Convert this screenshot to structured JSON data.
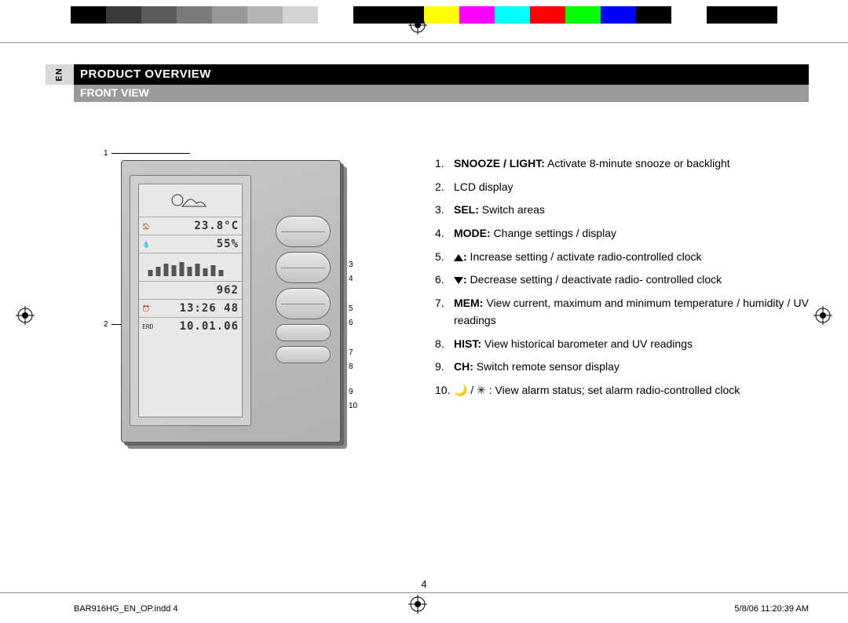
{
  "lang_tab": "EN",
  "section_title": "PRODUCT OVERVIEW",
  "subsection_title": "FRONT VIEW",
  "page_number": "4",
  "footer_left": "BAR916HG_EN_OP.indd   4",
  "footer_right": "5/8/06   11:20:39 AM",
  "colorbar": [
    "#000000",
    "#3a3a3a",
    "#5c5c5c",
    "#7a7a7a",
    "#989898",
    "#b4b4b4",
    "#d2d2d2",
    "#ffffff",
    "#000000",
    "#000000",
    "#ffff00",
    "#ff00ff",
    "#00ffff",
    "#ff0000",
    "#00ff00",
    "#0000ff",
    "#000000",
    "#ffffff",
    "#000000",
    "#000000"
  ],
  "diagram": {
    "callouts": [
      "1",
      "2",
      "3",
      "4",
      "5",
      "6",
      "7",
      "8",
      "9",
      "10"
    ],
    "lcd_lines": {
      "temp": "23.8°C",
      "hum": "55%",
      "pressure": "962",
      "time": "13:26 48",
      "date": "10.01.06"
    }
  },
  "list_items": [
    {
      "bold": "SNOOZE / LIGHT:",
      "text": " Activate 8-minute snooze or backlight"
    },
    {
      "bold": "",
      "text": "LCD display"
    },
    {
      "bold": "SEL:",
      "text": " Switch areas"
    },
    {
      "bold": "MODE:",
      "text": " Change settings / display"
    },
    {
      "bold": "",
      "icon": "up",
      "after_bold": ":",
      "text": " Increase setting / activate radio-controlled clock"
    },
    {
      "bold": "",
      "icon": "down",
      "after_bold": ":",
      "text": " Decrease setting / deactivate radio- controlled clock"
    },
    {
      "bold": "MEM:",
      "text": " View current, maximum and minimum temperature / humidity / UV readings"
    },
    {
      "bold": "HIST:",
      "text": " View historical barometer and UV readings"
    },
    {
      "bold": "CH:",
      "text": " Switch remote sensor display"
    },
    {
      "bold": "",
      "symbols": "🌙 / ✳ :",
      "text": " View alarm status; set alarm radio-controlled clock"
    }
  ]
}
